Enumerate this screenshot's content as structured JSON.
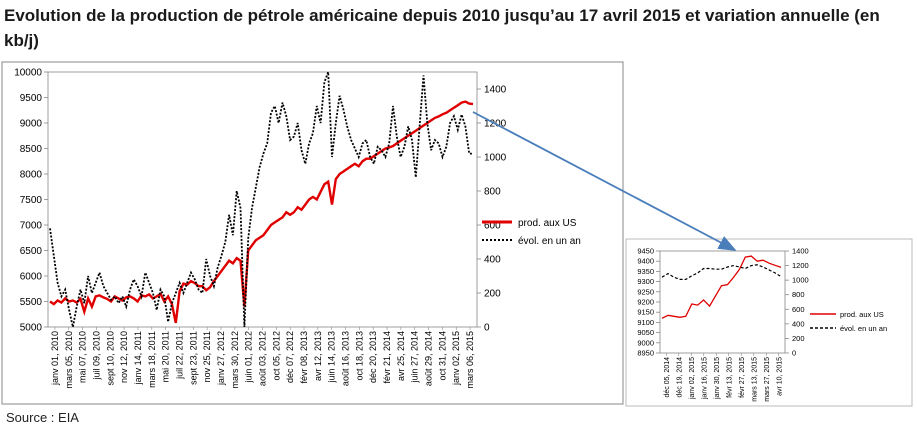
{
  "title": "Evolution de la production de pétrole américaine depuis 2010 jusqu’au 17 avril 2015 et variation annuelle (en kb/j)",
  "source": "Source : EIA",
  "colors": {
    "production": "#e00000",
    "variation": "#000000",
    "arrow": "#4a7ebb",
    "frame": "#888888"
  },
  "chart_data": [
    {
      "type": "line",
      "title": "",
      "y_left": {
        "min": 5000,
        "max": 10000,
        "ticks": [
          "5000",
          "5500",
          "6000",
          "6500",
          "7000",
          "7500",
          "8000",
          "8500",
          "9000",
          "9500",
          "10000"
        ]
      },
      "y_right": {
        "min": 0,
        "max": 1500,
        "ticks": [
          "0",
          "200",
          "400",
          "600",
          "800",
          "1000",
          "1200",
          "1400"
        ]
      },
      "x_tick_labels": [
        "janv 01, 2010",
        "mars 05, 2010",
        "mai 07, 2010",
        "juil 09, 2010",
        "sept 10, 2010",
        "nov 12, 2010",
        "janv 14, 2011",
        "mars 18, 2011",
        "mai 20, 2011",
        "juil 22, 2011",
        "sept 23, 2011",
        "nov 25, 2011",
        "janv 27, 2012",
        "mars 30, 2012",
        "juin 01, 2012",
        "août 03, 2012",
        "oct 05, 2012",
        "déc 07, 2012",
        "févr 08, 2013",
        "avr 12, 2013",
        "juin 14, 2013",
        "août 16, 2013",
        "oct 18, 2013",
        "déc 20, 2013",
        "févr 21, 2014",
        "avr 25, 2014",
        "juin 27, 2014",
        "août 29, 2014",
        "oct 31, 2014",
        "janv 02, 2015",
        "mars 06, 2015"
      ],
      "legend_position": "right",
      "series": [
        {
          "name": "prod. aux US",
          "axis": "left",
          "values": [
            5500,
            5450,
            5520,
            5480,
            5560,
            5500,
            5520,
            5480,
            5550,
            5300,
            5560,
            5400,
            5600,
            5620,
            5580,
            5550,
            5500,
            5600,
            5560,
            5520,
            5580,
            5600,
            5560,
            5500,
            5620,
            5600,
            5640,
            5560,
            5600,
            5650,
            5500,
            5600,
            5450,
            5080,
            5700,
            5850,
            5830,
            5900,
            5860,
            5800,
            5800,
            5720,
            5780,
            5900,
            6000,
            6100,
            6200,
            6300,
            6250,
            6350,
            6300,
            5400,
            6500,
            6600,
            6700,
            6750,
            6800,
            6900,
            7000,
            7050,
            7100,
            7150,
            7250,
            7200,
            7250,
            7350,
            7300,
            7400,
            7500,
            7550,
            7500,
            7650,
            7800,
            7850,
            7400,
            7900,
            8000,
            8050,
            8100,
            8150,
            8200,
            8150,
            8250,
            8300,
            8300,
            8350,
            8400,
            8450,
            8500,
            8520,
            8550,
            8600,
            8650,
            8700,
            8750,
            8800,
            8850,
            8900,
            8950,
            9000,
            9050,
            9100,
            9130,
            9170,
            9200,
            9250,
            9300,
            9350,
            9400,
            9420,
            9380,
            9370
          ]
        },
        {
          "name": "évol. en un an",
          "axis": "right",
          "values": [
            580,
            420,
            260,
            180,
            220,
            100,
            0,
            120,
            220,
            140,
            300,
            200,
            260,
            320,
            240,
            200,
            160,
            180,
            140,
            180,
            120,
            220,
            280,
            240,
            180,
            320,
            260,
            200,
            100,
            220,
            180,
            30,
            140,
            200,
            260,
            200,
            260,
            320,
            280,
            220,
            200,
            400,
            300,
            240,
            350,
            420,
            500,
            660,
            540,
            800,
            700,
            0,
            520,
            700,
            820,
            940,
            1020,
            1080,
            1260,
            1300,
            1200,
            1320,
            1240,
            1100,
            1120,
            1200,
            1040,
            960,
            1080,
            1140,
            1300,
            1200,
            1440,
            1500,
            1000,
            1200,
            1360,
            1280,
            1180,
            1100,
            1050,
            1000,
            1080,
            1100,
            1000,
            960,
            1060,
            1040,
            1000,
            1080,
            1300,
            1120,
            1000,
            1060,
            1180,
            1100,
            880,
            1180,
            1480,
            1200,
            1040,
            1100,
            1080,
            1000,
            1060,
            1200,
            1240,
            1160,
            1250,
            1180,
            1020,
            1020
          ]
        }
      ]
    },
    {
      "type": "line",
      "title": "",
      "y_left": {
        "min": 8950,
        "max": 9450,
        "ticks": [
          "8950",
          "9000",
          "9050",
          "9100",
          "9150",
          "9200",
          "9250",
          "9300",
          "9350",
          "9400",
          "9450"
        ]
      },
      "y_right": {
        "min": 0,
        "max": 1400,
        "ticks": [
          "0",
          "200",
          "400",
          "600",
          "800",
          "1000",
          "1200",
          "1400"
        ]
      },
      "x_tick_labels": [
        "déc 05, 2014",
        "déc 19, 2014",
        "janv 02, 2015",
        "janv 16, 2015",
        "janv 30, 2015",
        "févr 13, 2015",
        "févr 27, 2015",
        "mars 13, 2015",
        "mars 27, 2015",
        "avr 10, 2015"
      ],
      "legend_position": "right",
      "series": [
        {
          "name": "prod. aux US",
          "axis": "left",
          "values": [
            9120,
            9135,
            9130,
            9125,
            9130,
            9190,
            9185,
            9210,
            9180,
            9230,
            9280,
            9285,
            9320,
            9360,
            9420,
            9425,
            9400,
            9405,
            9390,
            9380,
            9370
          ]
        },
        {
          "name": "évol. en un an",
          "axis": "right",
          "values": [
            1040,
            1090,
            1040,
            1010,
            1010,
            1060,
            1100,
            1160,
            1160,
            1150,
            1150,
            1180,
            1200,
            1180,
            1160,
            1200,
            1210,
            1180,
            1140,
            1100,
            1050
          ]
        }
      ]
    }
  ]
}
